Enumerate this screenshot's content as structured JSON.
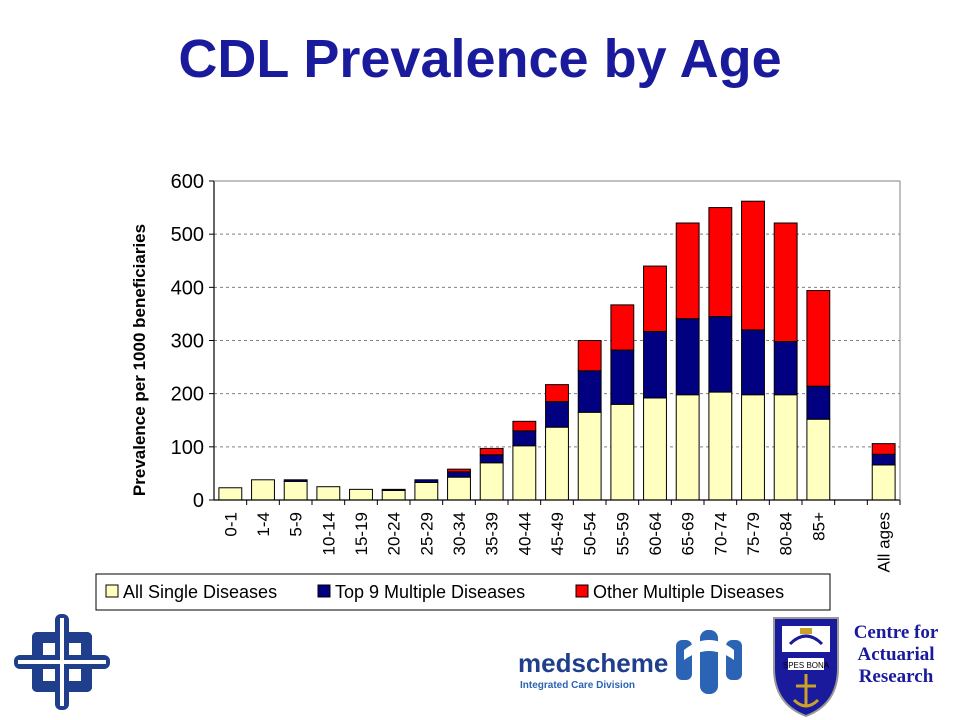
{
  "title": "CDL Prevalence by Age",
  "colors": {
    "title": "#1a1a9c",
    "single": "#ffffc0",
    "top9": "#000080",
    "other": "#ff0000",
    "grid": "#808080"
  },
  "chart_data": {
    "type": "bar",
    "stacked": true,
    "title": "",
    "ylabel": "Prevalence per 1000 beneficiaries",
    "xlabel": "",
    "ylim": [
      0,
      600
    ],
    "yticks": [
      0,
      100,
      200,
      300,
      400,
      500,
      600
    ],
    "grid": "horizontal dashed",
    "legend_position": "bottom",
    "categories": [
      "0-1",
      "1-4",
      "5-9",
      "10-14",
      "15-19",
      "20-24",
      "25-29",
      "30-34",
      "35-39",
      "40-44",
      "45-49",
      "50-54",
      "55-59",
      "60-64",
      "65-69",
      "70-74",
      "75-79",
      "80-84",
      "85+",
      "",
      "All ages"
    ],
    "series": [
      {
        "name": "All Single Diseases",
        "color": "#ffffc0",
        "values": [
          23,
          38,
          35,
          25,
          20,
          18,
          33,
          43,
          70,
          102,
          137,
          165,
          180,
          192,
          198,
          203,
          198,
          198,
          152,
          null,
          66
        ]
      },
      {
        "name": "Top 9 Multiple Diseases",
        "color": "#000080",
        "values": [
          0,
          0,
          3,
          0,
          0,
          2,
          5,
          10,
          15,
          28,
          48,
          78,
          102,
          125,
          143,
          142,
          122,
          100,
          62,
          null,
          20
        ]
      },
      {
        "name": "Other Multiple Diseases",
        "color": "#ff0000",
        "values": [
          0,
          0,
          0,
          0,
          0,
          0,
          0,
          5,
          12,
          18,
          32,
          57,
          85,
          123,
          180,
          205,
          242,
          223,
          180,
          null,
          20
        ]
      }
    ]
  },
  "logos": {
    "medscheme_name": "medscheme",
    "medscheme_sub": "Integrated Care Division",
    "centre_line1": "Centre for",
    "centre_line2": "Actuarial",
    "centre_line3": "Research",
    "crest_motto": "SPES BONA"
  }
}
